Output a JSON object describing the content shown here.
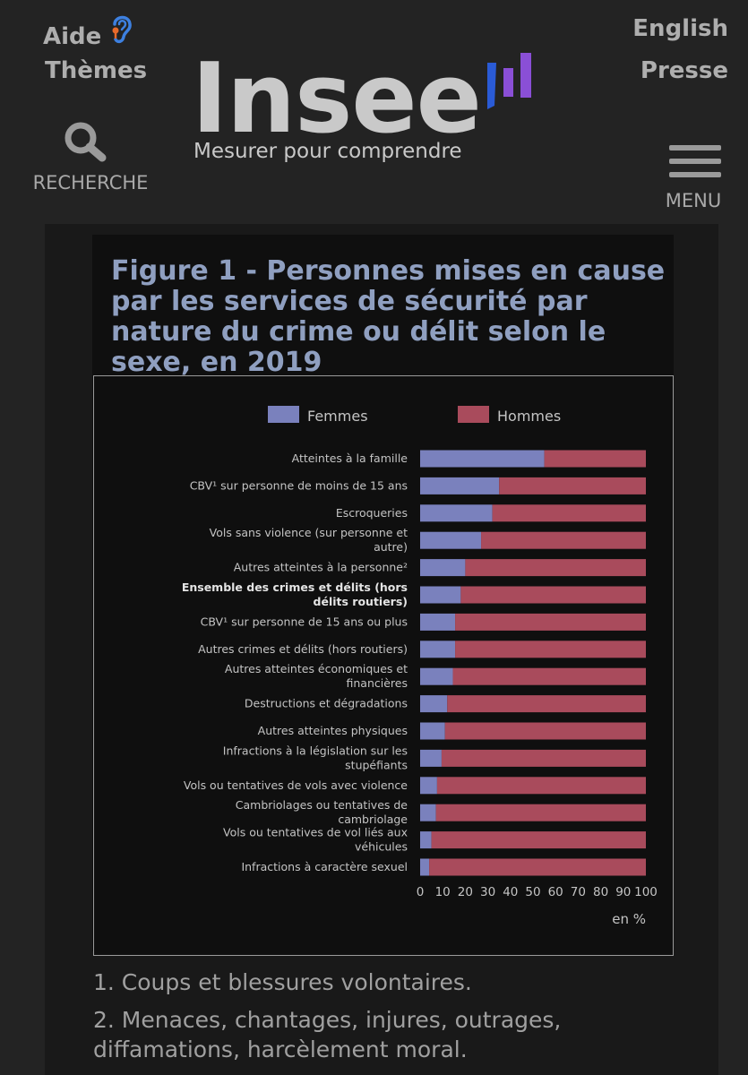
{
  "header": {
    "aide_label": "Aide",
    "themes_label": "Thèmes",
    "english_label": "English",
    "presse_label": "Presse",
    "search_label": "RECHERCHE",
    "menu_label": "MENU",
    "logo_text": "Insee",
    "logo_tagline": "Mesurer pour comprendre",
    "icons": {
      "accessibility": "ear-icon",
      "search": "search-icon",
      "menu": "hamburger-menu-icon"
    },
    "colors": {
      "ear_outline": "#3d80e0",
      "ear_accent": "#e86a2a",
      "logo_bar_blue": "#2a5bd6",
      "logo_bar_purple": "#8a4fd6"
    }
  },
  "figure": {
    "title": "Figure 1 - Personnes mises en cause par les services de sécurité par nature du crime ou délit selon le sexe, en 2019"
  },
  "chart_data": {
    "type": "bar",
    "orientation": "horizontal",
    "stacked": true,
    "categories": [
      "Atteintes à la famille",
      "CBV¹ sur personne de moins de 15 ans",
      "Escroqueries",
      "Vols sans violence (sur personne et autre)",
      "Autres atteintes à la personne²",
      "Ensemble des crimes et délits (hors délits routiers)",
      "CBV¹ sur personne de 15 ans ou plus",
      "Autres crimes et délits (hors routiers)",
      "Autres atteintes économiques et financières",
      "Destructions et dégradations",
      "Autres atteintes physiques",
      "Infractions à la législation sur les stupéfiants",
      "Vols ou tentatives de vols avec violence",
      "Cambriolages ou tentatives de cambriolage",
      "Vols ou tentatives de vol liés aux véhicules",
      "Infractions à caractère sexuel"
    ],
    "category_lines": [
      [
        "Atteintes à la famille"
      ],
      [
        "CBV¹ sur personne de moins de 15 ans"
      ],
      [
        "Escroqueries"
      ],
      [
        "Vols sans violence (sur personne et",
        "autre)"
      ],
      [
        "Autres atteintes à la personne²"
      ],
      [
        "Ensemble des crimes et délits (hors",
        "délits routiers)"
      ],
      [
        "CBV¹ sur personne de 15 ans ou plus"
      ],
      [
        "Autres crimes et délits (hors routiers)"
      ],
      [
        "Autres atteintes économiques et",
        "financières"
      ],
      [
        "Destructions et dégradations"
      ],
      [
        "Autres atteintes physiques"
      ],
      [
        "Infractions à la législation sur les",
        "stupéfiants"
      ],
      [
        "Vols ou tentatives de vols avec violence"
      ],
      [
        "Cambriolages ou tentatives de",
        "cambriolage"
      ],
      [
        "Vols ou tentatives de vol liés aux",
        "véhicules"
      ],
      [
        "Infractions à caractère sexuel"
      ]
    ],
    "highlight_category": "Ensemble des crimes et délits (hors délits routiers)",
    "series": [
      {
        "name": "Femmes",
        "color": "#7a81bd",
        "values": [
          55,
          35,
          32,
          27,
          20,
          18,
          15.5,
          15.5,
          14.5,
          12,
          11,
          9.5,
          7.5,
          7,
          5,
          4
        ]
      },
      {
        "name": "Hommes",
        "color": "#a94b5c",
        "values": [
          45,
          65,
          68,
          73,
          80,
          82,
          84.5,
          84.5,
          85.5,
          88,
          89,
          90.5,
          92.5,
          93,
          95,
          96
        ]
      }
    ],
    "xlim": [
      0,
      100
    ],
    "xticks": [
      0,
      10,
      20,
      30,
      40,
      50,
      60,
      70,
      80,
      90,
      100
    ],
    "xlabel": "en %",
    "legend_position": "top",
    "grid": false
  },
  "notes": [
    "1. Coups et blessures volontaires.",
    "2. Menaces, chantages, injures, outrages, diffamations, harcèlement moral."
  ]
}
